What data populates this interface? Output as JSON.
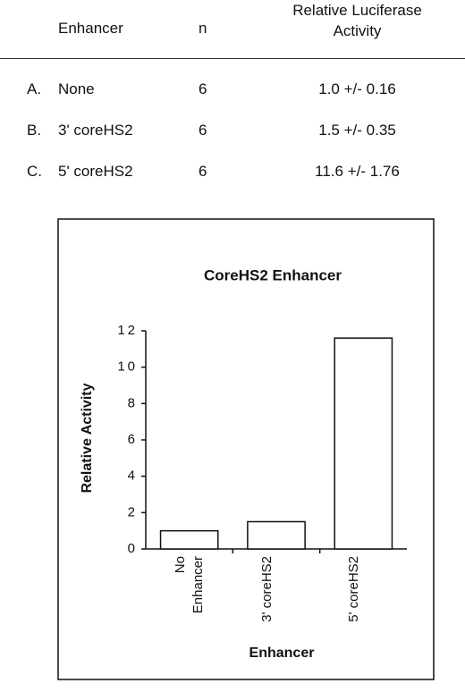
{
  "table": {
    "header": [
      "Enhancer",
      "n",
      "Relative Luciferase Activity"
    ],
    "rows": [
      [
        "A.",
        "None",
        "6",
        "1.0 +/- 0.16"
      ],
      [
        "B.",
        "3' coreHS2",
        "6",
        "1.5 +/- 0.35"
      ],
      [
        "C.",
        "5' coreHS2",
        "6",
        "11.6 +/- 1.76"
      ]
    ]
  },
  "chart_data": {
    "type": "bar",
    "title": "CoreHS2   Enhancer",
    "categories": [
      "No Enhancer",
      "3' coreHS2",
      "5' coreHS2"
    ],
    "values": [
      1.0,
      1.5,
      11.6
    ],
    "color": "#ffffff",
    "x_label": "Enhancer",
    "y_label": "Relative   Activity",
    "ylim": [
      0,
      12
    ],
    "yticks": [
      0,
      2,
      4,
      6,
      8,
      10,
      12
    ]
  }
}
